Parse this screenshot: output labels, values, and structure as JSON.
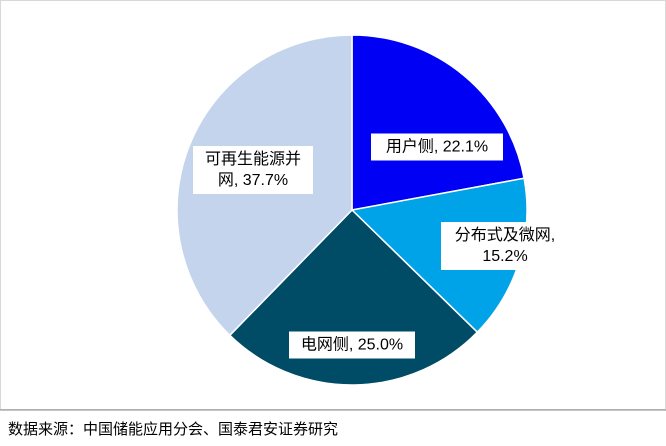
{
  "chart_data": {
    "type": "pie",
    "values": [
      22.1,
      15.2,
      25.0,
      37.7
    ],
    "value_labels": [
      "用户侧, 22.1%",
      "分布式及微网, 15.2%",
      "电网侧, 25.0%",
      "可再生能源并网, 37.7%"
    ],
    "colors": [
      "#0000f5",
      "#00a2e8",
      "#004b66",
      "#c3d4ec"
    ],
    "source": "数据来源：中国储能应用分会、国泰君安证券研究"
  }
}
